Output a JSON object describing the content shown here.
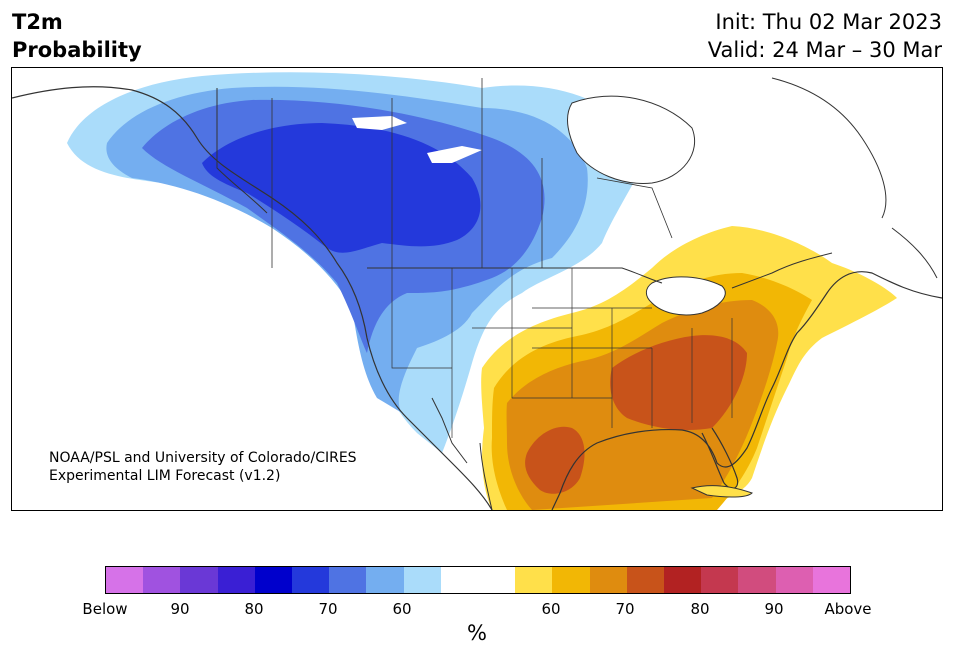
{
  "title": {
    "left_line1": "T2m",
    "left_line2": "Probability",
    "right_line1": "Init: Thu 02 Mar 2023",
    "right_line2": "Valid: 24 Mar – 30 Mar"
  },
  "credit": {
    "line1": "NOAA/PSL and University of Colorado/CIRES",
    "line2": "Experimental LIM Forecast (v1.2)"
  },
  "colorbar": {
    "unit": "%",
    "colors": [
      "#d672e8",
      "#a052e0",
      "#6a38d6",
      "#3a1fd4",
      "#0000cc",
      "#2439db",
      "#4f73e3",
      "#74aef0",
      "#aadcfa",
      "#ffffff",
      "#ffffff",
      "#ffe04a",
      "#f2b705",
      "#df8c0f",
      "#c8531a",
      "#b22222",
      "#c4384f",
      "#d14c7e",
      "#dd5fb1",
      "#e874dc"
    ],
    "tick_labels": [
      "Below",
      "90",
      "80",
      "70",
      "60",
      "60",
      "70",
      "80",
      "90",
      "Above"
    ]
  },
  "map": {
    "colors": {
      "blue_60": "#aadcfa",
      "blue_70": "#74aef0",
      "blue_80": "#4f73e3",
      "blue_90": "#2439db",
      "yellow_60": "#ffe04a",
      "yellow_70": "#f2b705",
      "orange_80": "#df8c0f",
      "orange_90": "#c8531a",
      "border": "#333333"
    }
  }
}
